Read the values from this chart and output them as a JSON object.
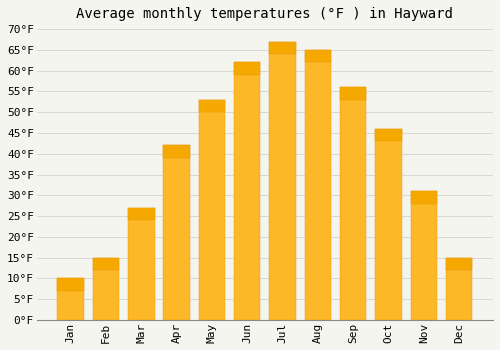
{
  "title": "Average monthly temperatures (°F ) in Hayward",
  "months": [
    "Jan",
    "Feb",
    "Mar",
    "Apr",
    "May",
    "Jun",
    "Jul",
    "Aug",
    "Sep",
    "Oct",
    "Nov",
    "Dec"
  ],
  "values": [
    10,
    15,
    27,
    42,
    53,
    62,
    67,
    65,
    56,
    46,
    31,
    15
  ],
  "bar_color_bottom": "#FDB827",
  "bar_color_top": "#F5A800",
  "bar_edge_color": "#E8960A",
  "background_color": "#F5F5F0",
  "plot_bg_color": "#F5F5F0",
  "grid_color": "#D8D8D8",
  "ylim": [
    0,
    70
  ],
  "ytick_step": 5,
  "title_fontsize": 10,
  "tick_fontsize": 8,
  "tick_font": "monospace"
}
